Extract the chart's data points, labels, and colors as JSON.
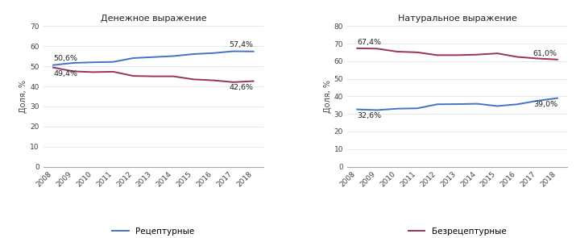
{
  "years": [
    2008,
    2009,
    2010,
    2011,
    2012,
    2013,
    2014,
    2015,
    2016,
    2017,
    2018
  ],
  "monetary_rx": [
    50.6,
    51.7,
    52.0,
    52.2,
    54.1,
    54.6,
    55.1,
    56.1,
    56.6,
    57.5,
    57.4
  ],
  "monetary_otc": [
    49.4,
    47.5,
    47.1,
    47.3,
    45.2,
    45.0,
    45.0,
    43.5,
    43.0,
    42.1,
    42.6
  ],
  "natural_rx": [
    32.6,
    32.2,
    33.0,
    33.2,
    35.5,
    35.6,
    35.8,
    34.5,
    35.5,
    37.5,
    39.0
  ],
  "natural_otc": [
    67.4,
    67.2,
    65.5,
    65.1,
    63.5,
    63.5,
    63.8,
    64.5,
    62.5,
    61.6,
    61.0
  ],
  "color_rx": "#4472c4",
  "color_otc": "#9b3060",
  "title_monetary": "Денежное выражение",
  "title_natural": "Натуральное выражение",
  "ylabel": "Доля, %",
  "label_rx": "Рецептурные",
  "label_otc": "Безрецептурные",
  "ylim_monetary": [
    0,
    70
  ],
  "ylim_natural": [
    0,
    80
  ],
  "yticks_monetary": [
    0,
    10,
    20,
    30,
    40,
    50,
    60,
    70
  ],
  "yticks_natural": [
    0,
    10,
    20,
    30,
    40,
    50,
    60,
    70,
    80
  ],
  "annot_monetary_rx_start": "50,6%",
  "annot_monetary_rx_end": "57,4%",
  "annot_monetary_otc_start": "49,4%",
  "annot_monetary_otc_end": "42,6%",
  "annot_natural_rx_start": "32,6%",
  "annot_natural_rx_end": "39,0%",
  "annot_natural_otc_start": "67,4%",
  "annot_natural_otc_end": "61,0%"
}
